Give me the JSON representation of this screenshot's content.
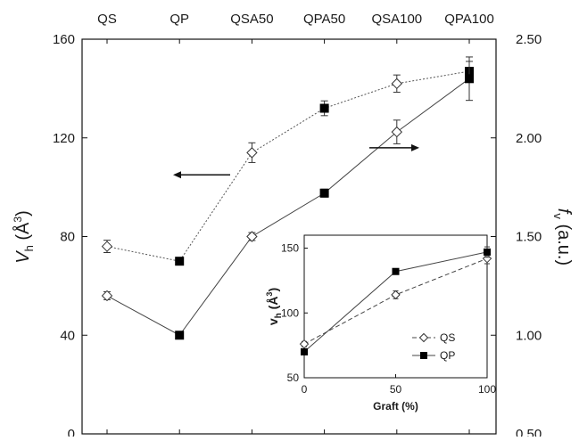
{
  "chart_data": [
    {
      "type": "line",
      "categories": [
        "QS",
        "QP",
        "QSA50",
        "QPA50",
        "QSA100",
        "QPA100"
      ],
      "y_left": {
        "label_main": "V",
        "label_sub": "h",
        "label_unit": " (Å",
        "label_sup": "3",
        "label_close": ")",
        "lim": [
          0,
          160
        ],
        "ticks": [
          "0",
          "40",
          "80",
          "120",
          "160"
        ]
      },
      "y_right": {
        "label_main": "f",
        "label_sub": "v",
        "label_unit": " (a.u.)",
        "lim": [
          0.5,
          2.5
        ],
        "ticks": [
          "0.50",
          "1.00",
          "1.50",
          "2.00",
          "2.50"
        ]
      },
      "series": [
        {
          "axis": "left",
          "style": "dotted",
          "values": [
            76,
            70,
            114,
            132,
            142,
            147
          ],
          "errors": [
            2.5,
            0,
            4,
            3,
            3.5,
            4
          ],
          "markers": [
            "open-diamond",
            "filled-square",
            "open-diamond",
            "filled-square",
            "open-diamond",
            "filled-square"
          ]
        },
        {
          "axis": "right",
          "style": "solid",
          "values": [
            1.2,
            1.0,
            1.5,
            1.72,
            2.03,
            2.3
          ],
          "errors": [
            0.02,
            0.01,
            0.02,
            0.02,
            0.06,
            0.11
          ],
          "markers": [
            "open-diamond",
            "filled-square",
            "open-diamond",
            "filled-square",
            "open-diamond",
            "filled-square"
          ]
        }
      ]
    },
    {
      "type": "line",
      "inset": true,
      "x": [
        0,
        50,
        100
      ],
      "xlabel": "Graft (%)",
      "xlim": [
        0,
        100
      ],
      "x_ticks": [
        "0",
        "50",
        "100"
      ],
      "ylabel_main": "v",
      "ylabel_sub": "h",
      "ylabel_unit": " (Å",
      "ylabel_sup": "3",
      "ylabel_close": ")",
      "ylim": [
        50,
        160
      ],
      "y_ticks": [
        "50",
        "100",
        "150"
      ],
      "series": [
        {
          "name": "QS",
          "style": "dashed",
          "marker": "open-diamond",
          "values": [
            76,
            114,
            142
          ],
          "errors": [
            2,
            3,
            4
          ]
        },
        {
          "name": "QP",
          "style": "solid",
          "marker": "filled-square",
          "values": [
            70,
            132,
            147
          ],
          "errors": [
            1,
            2,
            4
          ]
        }
      ]
    }
  ],
  "colors": {
    "axis": "#111111",
    "dotted_line": "#555555",
    "solid_line": "#444444",
    "marker_fill": "#000000",
    "diamond_fill": "#ffffff"
  }
}
